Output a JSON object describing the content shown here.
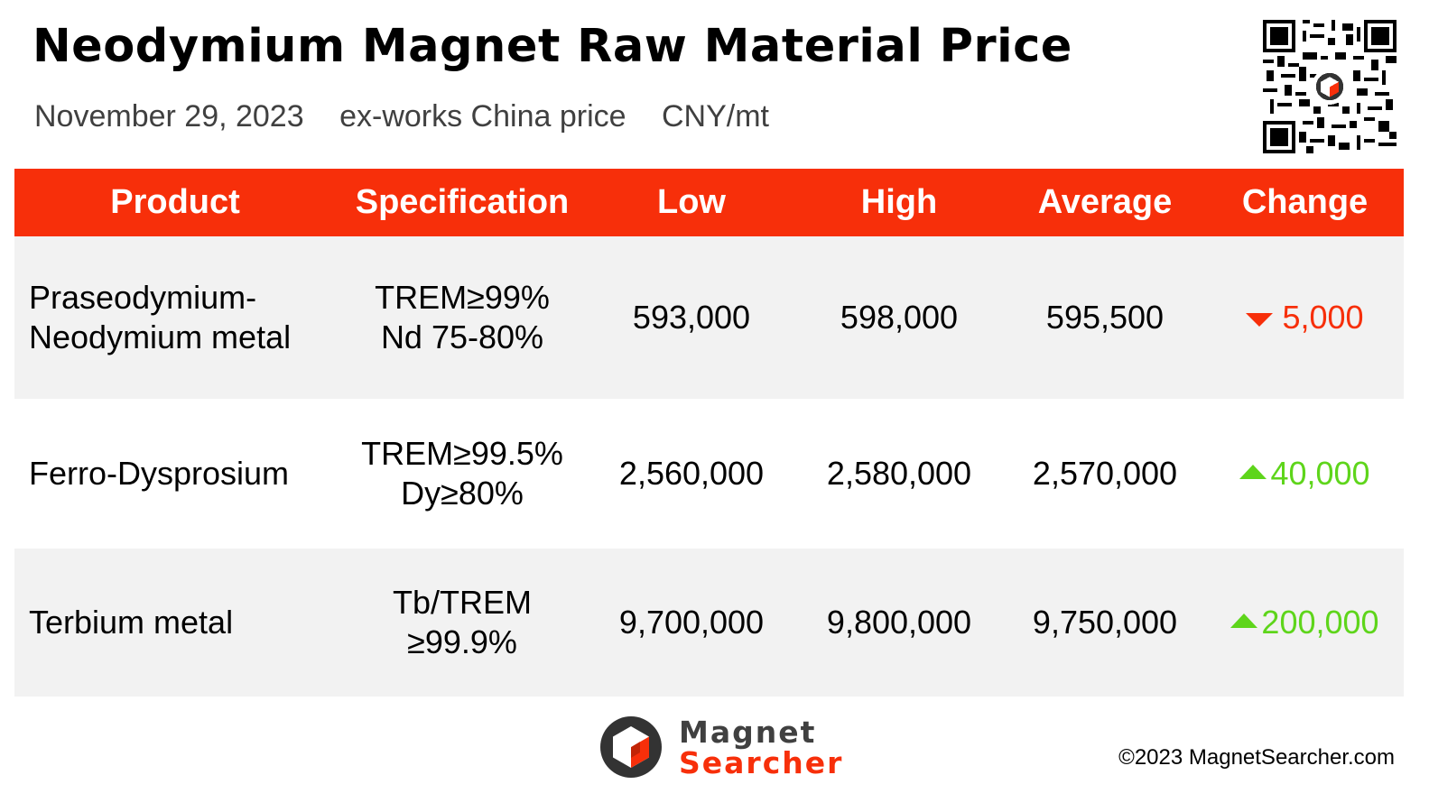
{
  "header": {
    "title": "Neodymium Magnet Raw Material Price",
    "date": "November 29, 2023",
    "basis": "ex-works China price",
    "unit": "CNY/mt"
  },
  "table": {
    "columns": [
      "Product",
      "Specification",
      "Low",
      "High",
      "Average",
      "Change"
    ],
    "rows": [
      {
        "product": [
          "Praseodymium-",
          "Neodymium metal"
        ],
        "spec": [
          "TREM≥99%",
          "Nd 75-80%"
        ],
        "low": "593,000",
        "high": "598,000",
        "average": "595,500",
        "change": "5,000",
        "direction": "down"
      },
      {
        "product": [
          "Ferro-Dysprosium"
        ],
        "spec": [
          "TREM≥99.5%",
          "Dy≥80%"
        ],
        "low": "2,560,000",
        "high": "2,580,000",
        "average": "2,570,000",
        "change": "40,000",
        "direction": "up"
      },
      {
        "product": [
          "Terbium metal"
        ],
        "spec": [
          "Tb/TREM",
          "≥99.9%"
        ],
        "low": "9,700,000",
        "high": "9,800,000",
        "average": "9,750,000",
        "change": "200,000",
        "direction": "up"
      }
    ]
  },
  "footer": {
    "logo_line1": "Magnet",
    "logo_line2": "Searcher",
    "copyright": "©2023 MagnetSearcher.com"
  },
  "colors": {
    "header_bg": "#f72f0a",
    "down": "#f72f0a",
    "up": "#5ed51b",
    "row_shade": "#f2f2f2"
  },
  "icons": {
    "qr": "qr-code-icon",
    "logo": "magnet-searcher-logo-icon",
    "down": "triangle-down-icon",
    "up": "triangle-up-icon"
  }
}
